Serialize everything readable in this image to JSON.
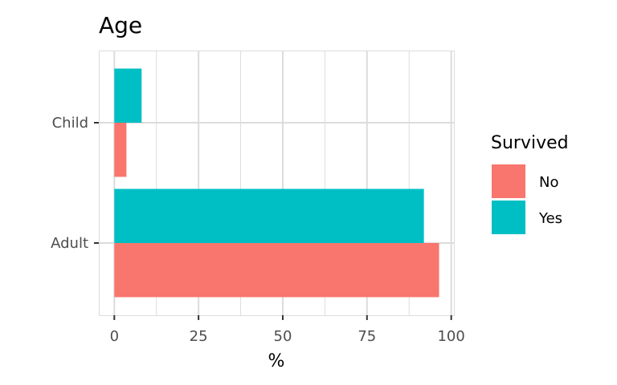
{
  "chart_data": {
    "type": "bar",
    "orientation": "horizontal",
    "title": "Age",
    "xlabel": "%",
    "ylabel": "",
    "categories": [
      "Child",
      "Adult"
    ],
    "series": [
      {
        "name": "No",
        "color": "#F8766D",
        "values": [
          3.6,
          96.4
        ]
      },
      {
        "name": "Yes",
        "color": "#00BFC4",
        "values": [
          8.1,
          91.9
        ]
      }
    ],
    "xlim": [
      -4.6,
      100.8
    ],
    "xticks": [
      0,
      25,
      50,
      75,
      100
    ],
    "xtick_labels": [
      "0",
      "25",
      "50",
      "75",
      "100"
    ],
    "grid": true,
    "panel_background": "#ffffff",
    "grid_color": "#dcdcdc",
    "legend": {
      "title": "Survived",
      "position": "right",
      "entries": [
        "No",
        "Yes"
      ]
    }
  }
}
